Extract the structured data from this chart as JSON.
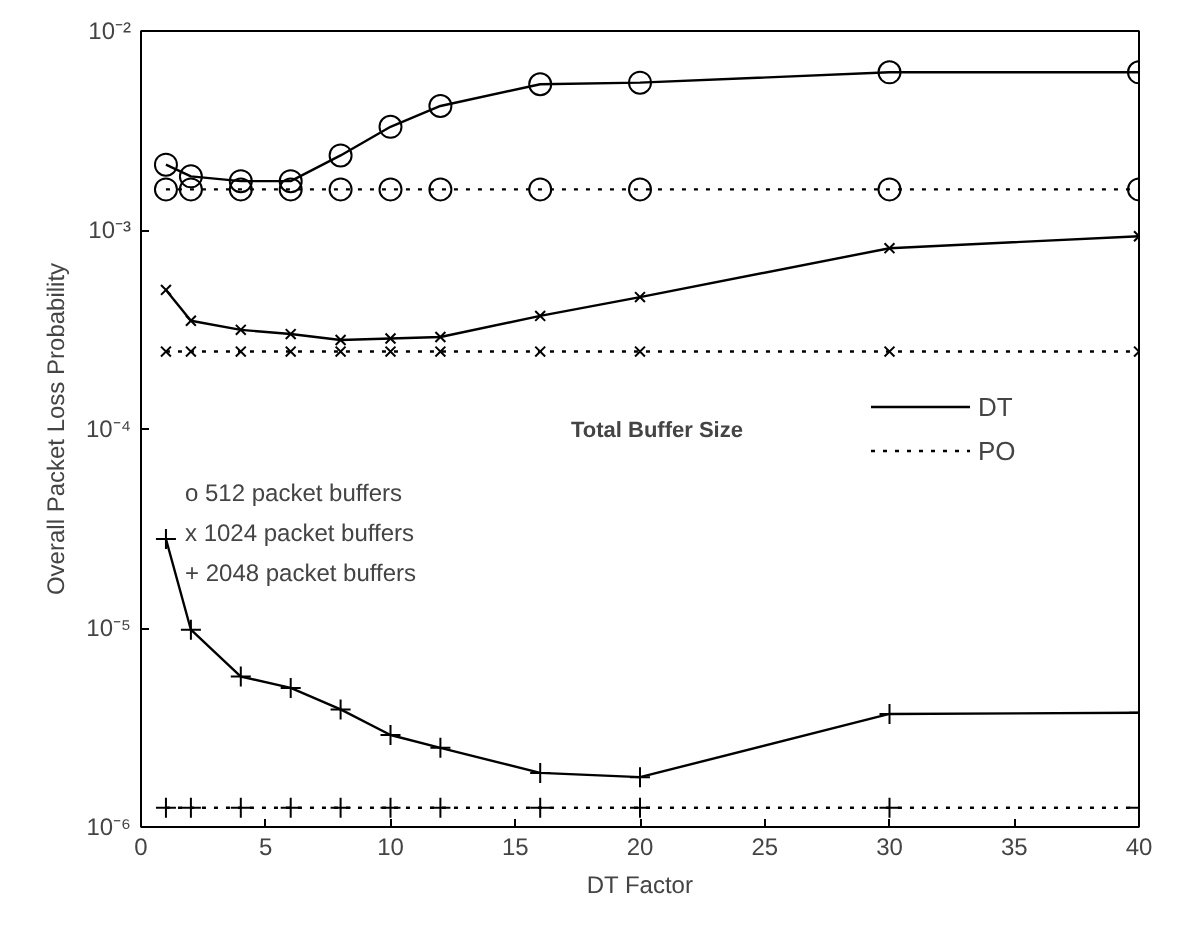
{
  "chart_data": {
    "type": "line",
    "xlabel": "DT Factor",
    "ylabel": "Overall Packet Loss Probability",
    "log": "y",
    "x": [
      1,
      2,
      4,
      6,
      8,
      10,
      12,
      16,
      20,
      30,
      40
    ],
    "xlim": [
      0,
      40
    ],
    "xticks": [
      0,
      5,
      10,
      15,
      20,
      25,
      30,
      35,
      40
    ],
    "ylim": [
      1e-06,
      0.01
    ],
    "yticks": [
      {
        "value": 1e-06,
        "label": "10⁻⁶"
      },
      {
        "value": 1e-05,
        "label": "10⁻⁵"
      },
      {
        "value": 0.0001,
        "label": "10⁻⁴"
      },
      {
        "value": 0.001,
        "label": "10⁻³"
      },
      {
        "value": 0.01,
        "label": "10⁻²"
      }
    ],
    "grid": false,
    "legend": "right",
    "annotations": [
      "Total Buffer Size",
      "o 512 packet buffers",
      "x 1024 packet buffers",
      "+ 2048 packet buffers"
    ],
    "series": [
      {
        "name": "DT",
        "color": "#000000",
        "marker": "circle",
        "line_style": "solid",
        "values": [
          0.00213,
          0.00186,
          0.00176,
          0.00176,
          0.00237,
          0.0033,
          0.0042,
          0.0054,
          0.0055,
          0.0062,
          0.0062
        ]
      },
      {
        "name": "PO",
        "color": "#000000",
        "marker": "circle",
        "line_style": "dotted",
        "values": [
          0.0016,
          0.0016,
          0.0016,
          0.0016,
          0.0016,
          0.0016,
          0.0016,
          0.0016,
          0.0016,
          0.0016,
          0.0016
        ]
      },
      {
        "color": "#000000",
        "marker": "x",
        "line_style": "solid",
        "values": [
          0.0005,
          0.00035,
          0.000315,
          0.0003,
          0.00028,
          0.000285,
          0.00029,
          0.00037,
          0.00046,
          0.00081,
          0.00093
        ]
      },
      {
        "color": "#000000",
        "marker": "x",
        "line_style": "dotted",
        "values": [
          0.000245,
          0.000245,
          0.000245,
          0.000245,
          0.000245,
          0.000245,
          0.000245,
          0.000245,
          0.000245,
          0.000245,
          0.000245
        ]
      },
      {
        "color": "#000000",
        "marker": "cross",
        "line_style": "solid",
        "values": [
          2.8e-05,
          9.8e-06,
          5.7e-06,
          5e-06,
          3.9e-06,
          2.9e-06,
          2.5e-06,
          1.87e-06,
          1.78e-06,
          3.7e-06,
          3.75e-06
        ]
      },
      {
        "color": "#000000",
        "marker": "cross",
        "line_style": "dotted",
        "values": [
          1.25e-06,
          1.25e-06,
          1.25e-06,
          1.25e-06,
          1.25e-06,
          1.25e-06,
          1.25e-06,
          1.25e-06,
          1.25e-06,
          1.25e-06,
          1.25e-06
        ]
      }
    ]
  }
}
